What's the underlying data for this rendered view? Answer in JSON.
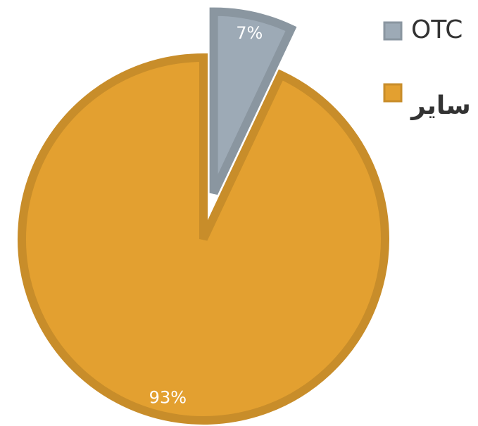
{
  "chart_data": {
    "type": "pie",
    "categories": [
      "OTC",
      "سایر"
    ],
    "values": [
      7,
      93
    ],
    "value_labels": [
      "7%",
      "93%"
    ],
    "colors": [
      "#9daab6",
      "#e3a030"
    ],
    "legend": "top-right"
  }
}
